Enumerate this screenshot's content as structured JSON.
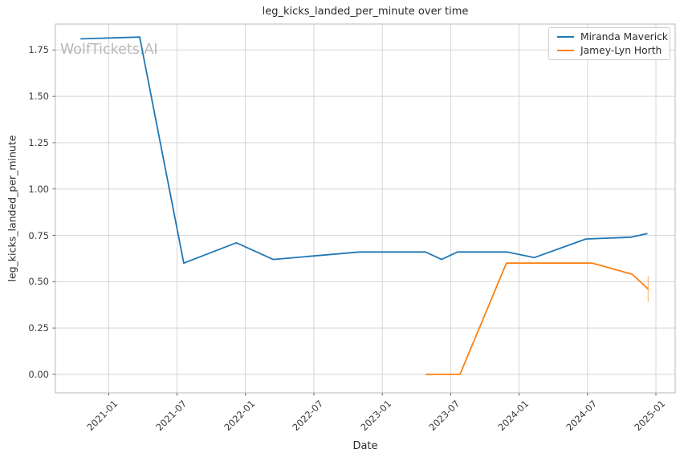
{
  "chart_data": {
    "type": "line",
    "title": "leg_kicks_landed_per_minute over time",
    "xlabel": "Date",
    "ylabel": "leg_kicks_landed_per_minute",
    "watermark": "WolfTickets.AI",
    "grid": true,
    "legend_position": "upper right",
    "x_ticks": [
      "2021-01",
      "2021-07",
      "2022-01",
      "2022-07",
      "2023-01",
      "2023-07",
      "2024-01",
      "2024-07",
      "2025-01"
    ],
    "y_ticks": [
      "0.00",
      "0.25",
      "0.50",
      "0.75",
      "1.00",
      "1.25",
      "1.50",
      "1.75"
    ],
    "xlim": [
      "2020-08-11",
      "2025-02-22"
    ],
    "ylim": [
      -0.1,
      1.89
    ],
    "series": [
      {
        "name": "Miranda Maverick",
        "color": "#1f77b4",
        "points": [
          {
            "date": "2020-10-17",
            "value": 1.81
          },
          {
            "date": "2021-03-23",
            "value": 1.82
          },
          {
            "date": "2021-07-19",
            "value": 0.6
          },
          {
            "date": "2021-12-07",
            "value": 0.71
          },
          {
            "date": "2022-03-14",
            "value": 0.62
          },
          {
            "date": "2022-11-01",
            "value": 0.66
          },
          {
            "date": "2023-04-25",
            "value": 0.66
          },
          {
            "date": "2023-06-07",
            "value": 0.62
          },
          {
            "date": "2023-07-19",
            "value": 0.66
          },
          {
            "date": "2023-11-30",
            "value": 0.66
          },
          {
            "date": "2024-02-11",
            "value": 0.63
          },
          {
            "date": "2024-06-27",
            "value": 0.73
          },
          {
            "date": "2024-10-27",
            "value": 0.74
          },
          {
            "date": "2024-12-09",
            "value": 0.76
          }
        ]
      },
      {
        "name": "Jamey-Lyn Horth",
        "color": "#ff7f0e",
        "points": [
          {
            "date": "2023-04-25",
            "value": 0.0
          },
          {
            "date": "2023-07-26",
            "value": 0.0
          },
          {
            "date": "2023-11-28",
            "value": 0.6
          },
          {
            "date": "2024-07-14",
            "value": 0.6
          },
          {
            "date": "2024-10-29",
            "value": 0.54
          },
          {
            "date": "2024-12-11",
            "value": 0.46
          }
        ],
        "error_bar": {
          "date": "2024-12-11",
          "low": 0.39,
          "high": 0.53
        }
      }
    ],
    "colors": {
      "grid": "#d5d5d5",
      "spine": "#b9b9b9",
      "tick_mark": "#555555",
      "text": "#2b2b2b",
      "watermark": "#b8b8b8",
      "error_bar": "rgba(255,127,14,0.45)"
    }
  }
}
